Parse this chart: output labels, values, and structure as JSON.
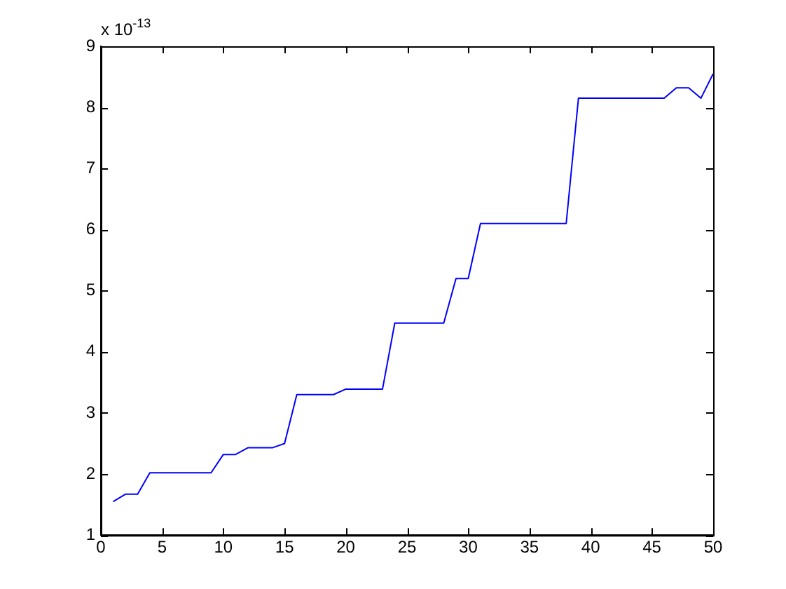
{
  "chart_data": {
    "type": "line",
    "ylabel": "x 10$^{-13}$",
    "x": [
      1,
      2,
      3,
      4,
      5,
      6,
      7,
      8,
      9,
      10,
      11,
      12,
      13,
      14,
      15,
      16,
      17,
      18,
      19,
      20,
      21,
      22,
      23,
      24,
      25,
      26,
      27,
      28,
      29,
      30,
      31,
      32,
      33,
      34,
      35,
      36,
      37,
      38,
      39,
      40,
      41,
      42,
      43,
      44,
      45,
      46,
      47,
      48,
      49,
      50
    ],
    "series": [
      {
        "color": "#0000ff",
        "values": [
          1.55,
          1.67,
          1.67,
          2.02,
          2.02,
          2.02,
          2.02,
          2.02,
          2.02,
          2.32,
          2.32,
          2.43,
          2.43,
          2.43,
          2.5,
          3.3,
          3.3,
          3.3,
          3.3,
          3.39,
          3.39,
          3.39,
          3.39,
          4.47,
          4.47,
          4.47,
          4.47,
          4.47,
          5.2,
          5.2,
          6.1,
          6.1,
          6.1,
          6.1,
          6.1,
          6.1,
          6.1,
          6.1,
          8.15,
          8.15,
          8.15,
          8.15,
          8.15,
          8.15,
          8.15,
          8.15,
          8.32,
          8.32,
          8.15,
          8.55
        ]
      }
    ],
    "xlim": [
      0,
      50
    ],
    "xticks": [
      0,
      5,
      10,
      15,
      20,
      25,
      30,
      35,
      40,
      45,
      50
    ],
    "ylim": [
      1,
      9
    ],
    "yticks": [
      1,
      2,
      3,
      4,
      5,
      6,
      7,
      8,
      9
    ],
    "grid": false,
    "legend": false,
    "marker": "none",
    "line_style": "solid"
  }
}
